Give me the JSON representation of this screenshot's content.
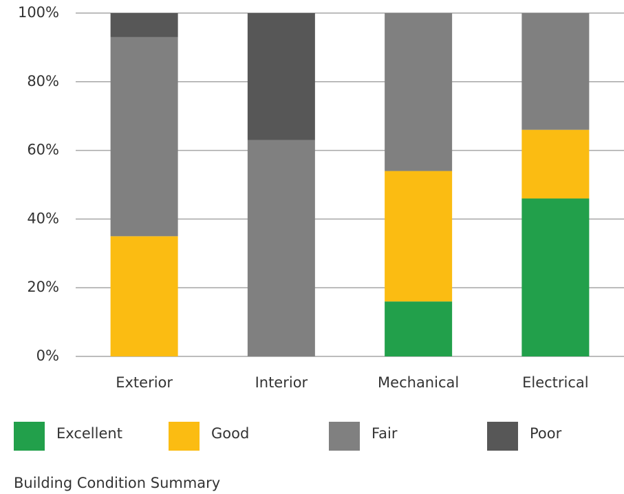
{
  "chart_data": {
    "type": "stacked_bar",
    "caption": "Building Condition Summary",
    "categories": [
      "Exterior",
      "Interior",
      "Mechanical",
      "Electrical"
    ],
    "series": [
      {
        "name": "Excellent",
        "color": "#22a04b",
        "values": [
          0,
          0,
          16,
          46
        ]
      },
      {
        "name": "Good",
        "color": "#fbbc12",
        "values": [
          35,
          0,
          38,
          20
        ]
      },
      {
        "name": "Fair",
        "color": "#808080",
        "values": [
          58,
          63,
          46,
          34
        ]
      },
      {
        "name": "Poor",
        "color": "#575757",
        "values": [
          7,
          37,
          0,
          0
        ]
      }
    ],
    "ylim": [
      0,
      100
    ],
    "yticks": [
      {
        "value": 0,
        "label": "0%"
      },
      {
        "value": 20,
        "label": "20%"
      },
      {
        "value": 40,
        "label": "40%"
      },
      {
        "value": 60,
        "label": "60%"
      },
      {
        "value": 80,
        "label": "80%"
      },
      {
        "value": 100,
        "label": "100%"
      }
    ],
    "grid": true,
    "legend": "bottom"
  }
}
